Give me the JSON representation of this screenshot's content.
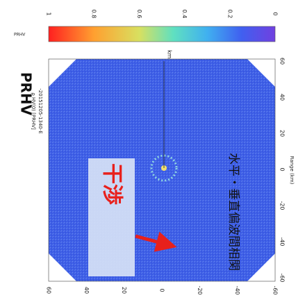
{
  "colorbar": {
    "label": "PRHV",
    "ticks": [
      "1",
      "0.8",
      "0.6",
      "0.4",
      "0.2",
      "0"
    ]
  },
  "header": {
    "title": "PRHV",
    "subtitle": "-20151205-1340-E",
    "variable": "ρ HV(0)   [PRHV]"
  },
  "axes": {
    "right_ticks": [
      "60",
      "40",
      "20",
      "0",
      "-20",
      "-40",
      "-60"
    ],
    "bottom_ticks": [
      "60",
      "40",
      "20",
      "0",
      "-20",
      "-40",
      "-60"
    ],
    "range_label": "Range (km)",
    "unit": "km"
  },
  "annotations": {
    "interference": "干渉",
    "description": "水平・垂直偏波間相関"
  }
}
